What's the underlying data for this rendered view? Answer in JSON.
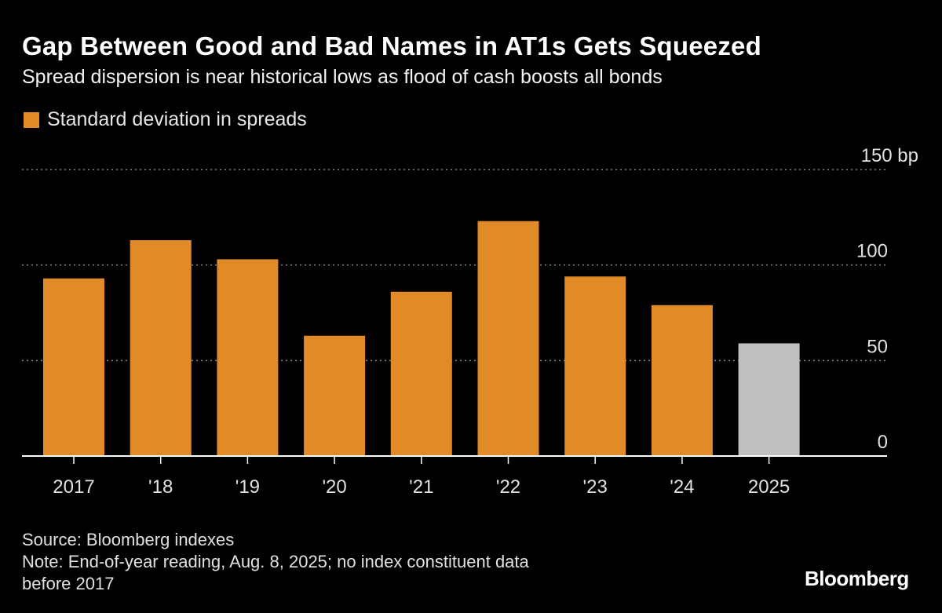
{
  "header": {
    "title": "Gap Between Good and Bad Names in AT1s Gets Squeezed",
    "subtitle": "Spread dispersion is near historical lows as flood of cash boosts all bonds"
  },
  "legend": {
    "label": "Standard deviation in spreads"
  },
  "colors": {
    "bar": "#e08a28",
    "bar_highlight": "#c0c0c0",
    "grid": "#888888",
    "axis": "#ffffff",
    "tick_text": "#e0e0e0"
  },
  "chart_data": {
    "type": "bar",
    "title": "Gap Between Good and Bad Names in AT1s Gets Squeezed",
    "xlabel": "",
    "ylabel": "bp",
    "categories": [
      "2017",
      "'18",
      "'19",
      "'20",
      "'21",
      "'22",
      "'23",
      "'24",
      "2025"
    ],
    "series": [
      {
        "name": "Standard deviation in spreads",
        "values": [
          93,
          113,
          103,
          63,
          86,
          123,
          94,
          79,
          59
        ]
      }
    ],
    "highlight_index": 8,
    "ylim": [
      0,
      150
    ],
    "yticks": [
      0,
      50,
      100,
      150
    ],
    "ytick_labels": [
      "0",
      "50",
      "100",
      "150 bp"
    ],
    "grid": true,
    "legend_position": "top-left"
  },
  "footer": {
    "source": "Source: Bloomberg indexes",
    "note_line1": "Note: End-of-year reading, Aug. 8, 2025; no index constituent data",
    "note_line2": "before 2017",
    "logo": "Bloomberg"
  }
}
